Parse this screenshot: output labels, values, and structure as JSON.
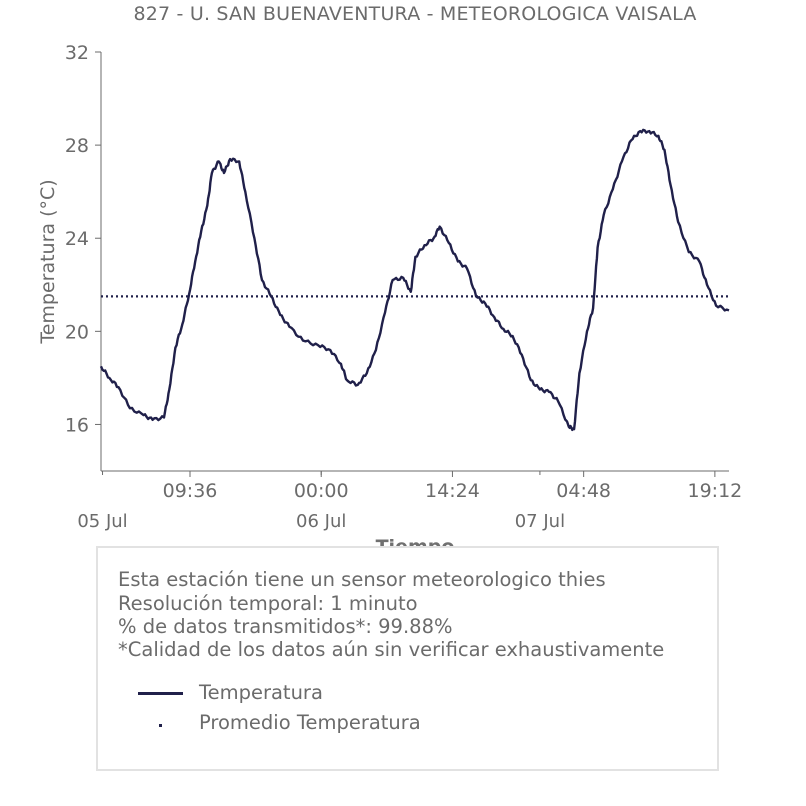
{
  "title": "827 - U. SAN BUENAVENTURA - METEOROLOGICA VAISALA",
  "chart_data": {
    "type": "line",
    "title": "827 - U. SAN BUENAVENTURA - METEOROLOGICA VAISALA",
    "xlabel": "Tiempo",
    "ylabel": "Temperatura (°C)",
    "ylim": [
      14,
      32
    ],
    "yticks": [
      16,
      20,
      24,
      28,
      32
    ],
    "xlim": [
      "2023-07-04 23:50",
      "2023-07-07 20:45"
    ],
    "xticks": [
      {
        "time": "2023-07-05 09:36",
        "label": "09:36"
      },
      {
        "time": "2023-07-06 00:00",
        "label": "00:00"
      },
      {
        "time": "2023-07-06 14:24",
        "label": "14:24"
      },
      {
        "time": "2023-07-07 04:48",
        "label": "04:48"
      },
      {
        "time": "2023-07-07 19:12",
        "label": "19:12"
      }
    ],
    "date_labels": [
      {
        "time": "2023-07-05 00:00",
        "label": "05 Jul"
      },
      {
        "time": "2023-07-06 00:00",
        "label": "06 Jul"
      },
      {
        "time": "2023-07-07 00:00",
        "label": "07 Jul"
      }
    ],
    "grid": false,
    "series": [
      {
        "name": "Temperatura",
        "color": "#20204a",
        "style": "solid",
        "points": [
          [
            "2023-07-04 23:50",
            18.5
          ],
          [
            "2023-07-05 00:45",
            18.0
          ],
          [
            "2023-07-05 01:45",
            17.6
          ],
          [
            "2023-07-05 03:00",
            16.7
          ],
          [
            "2023-07-05 04:30",
            16.4
          ],
          [
            "2023-07-05 05:30",
            16.2
          ],
          [
            "2023-07-05 06:45",
            16.3
          ],
          [
            "2023-07-05 07:20",
            17.5
          ],
          [
            "2023-07-05 08:00",
            19.3
          ],
          [
            "2023-07-05 08:45",
            20.3
          ],
          [
            "2023-07-05 09:30",
            21.6
          ],
          [
            "2023-07-05 10:10",
            23.0
          ],
          [
            "2023-07-05 10:50",
            24.3
          ],
          [
            "2023-07-05 11:30",
            25.4
          ],
          [
            "2023-07-05 12:00",
            26.8
          ],
          [
            "2023-07-05 12:45",
            27.3
          ],
          [
            "2023-07-05 13:20",
            26.8
          ],
          [
            "2023-07-05 14:00",
            27.4
          ],
          [
            "2023-07-05 15:00",
            27.3
          ],
          [
            "2023-07-05 15:40",
            26.0
          ],
          [
            "2023-07-05 16:40",
            24.0
          ],
          [
            "2023-07-05 17:30",
            22.2
          ],
          [
            "2023-07-05 18:30",
            21.5
          ],
          [
            "2023-07-05 19:30",
            20.7
          ],
          [
            "2023-07-05 20:30",
            20.2
          ],
          [
            "2023-07-05 22:00",
            19.6
          ],
          [
            "2023-07-05 23:40",
            19.4
          ],
          [
            "2023-07-06 01:00",
            19.2
          ],
          [
            "2023-07-06 02:10",
            18.6
          ],
          [
            "2023-07-06 02:50",
            17.9
          ],
          [
            "2023-07-06 04:00",
            17.7
          ],
          [
            "2023-07-06 05:00",
            18.2
          ],
          [
            "2023-07-06 06:00",
            19.2
          ],
          [
            "2023-07-06 07:00",
            20.8
          ],
          [
            "2023-07-06 07:50",
            22.2
          ],
          [
            "2023-07-06 09:00",
            22.3
          ],
          [
            "2023-07-06 09:50",
            21.7
          ],
          [
            "2023-07-06 10:20",
            23.2
          ],
          [
            "2023-07-06 11:20",
            23.7
          ],
          [
            "2023-07-06 12:20",
            24.0
          ],
          [
            "2023-07-06 13:00",
            24.5
          ],
          [
            "2023-07-06 14:00",
            23.8
          ],
          [
            "2023-07-06 15:00",
            23.0
          ],
          [
            "2023-07-06 16:00",
            22.7
          ],
          [
            "2023-07-06 17:00",
            21.5
          ],
          [
            "2023-07-06 18:00",
            21.2
          ],
          [
            "2023-07-06 19:00",
            20.6
          ],
          [
            "2023-07-06 20:00",
            20.1
          ],
          [
            "2023-07-06 21:00",
            19.8
          ],
          [
            "2023-07-06 22:00",
            19.0
          ],
          [
            "2023-07-06 23:00",
            17.9
          ],
          [
            "2023-07-07 00:00",
            17.5
          ],
          [
            "2023-07-07 01:00",
            17.4
          ],
          [
            "2023-07-07 02:00",
            17.0
          ],
          [
            "2023-07-07 03:10",
            15.9
          ],
          [
            "2023-07-07 03:45",
            15.8
          ],
          [
            "2023-07-07 04:20",
            18.2
          ],
          [
            "2023-07-07 05:10",
            20.0
          ],
          [
            "2023-07-07 05:50",
            21.0
          ],
          [
            "2023-07-07 06:20",
            23.6
          ],
          [
            "2023-07-07 07:00",
            25.0
          ],
          [
            "2023-07-07 08:00",
            26.1
          ],
          [
            "2023-07-07 09:00",
            27.3
          ],
          [
            "2023-07-07 10:00",
            28.2
          ],
          [
            "2023-07-07 11:00",
            28.6
          ],
          [
            "2023-07-07 12:00",
            28.6
          ],
          [
            "2023-07-07 13:00",
            28.4
          ],
          [
            "2023-07-07 13:40",
            27.8
          ],
          [
            "2023-07-07 14:20",
            26.3
          ],
          [
            "2023-07-07 15:10",
            24.7
          ],
          [
            "2023-07-07 16:20",
            23.4
          ],
          [
            "2023-07-07 17:30",
            23.0
          ],
          [
            "2023-07-07 18:20",
            22.0
          ],
          [
            "2023-07-07 19:20",
            21.1
          ],
          [
            "2023-07-07 20:45",
            20.9
          ]
        ]
      },
      {
        "name": "Promedio Temperatura",
        "color": "#20204a",
        "style": "dotted",
        "points": [
          [
            "2023-07-04 23:50",
            21.5
          ],
          [
            "2023-07-07 20:45",
            21.5
          ]
        ]
      }
    ]
  },
  "info": {
    "lines": [
      "Esta estación tiene un sensor meteorologico thies",
      "Resolución temporal: 1 minuto",
      "% de datos transmitidos*: 99.88%",
      "*Calidad de los datos aún sin verificar exhaustivamente"
    ]
  },
  "legend": {
    "items": [
      {
        "label": "Temperatura",
        "style": "solid"
      },
      {
        "label": "Promedio Temperatura",
        "style": "dotted"
      }
    ]
  }
}
